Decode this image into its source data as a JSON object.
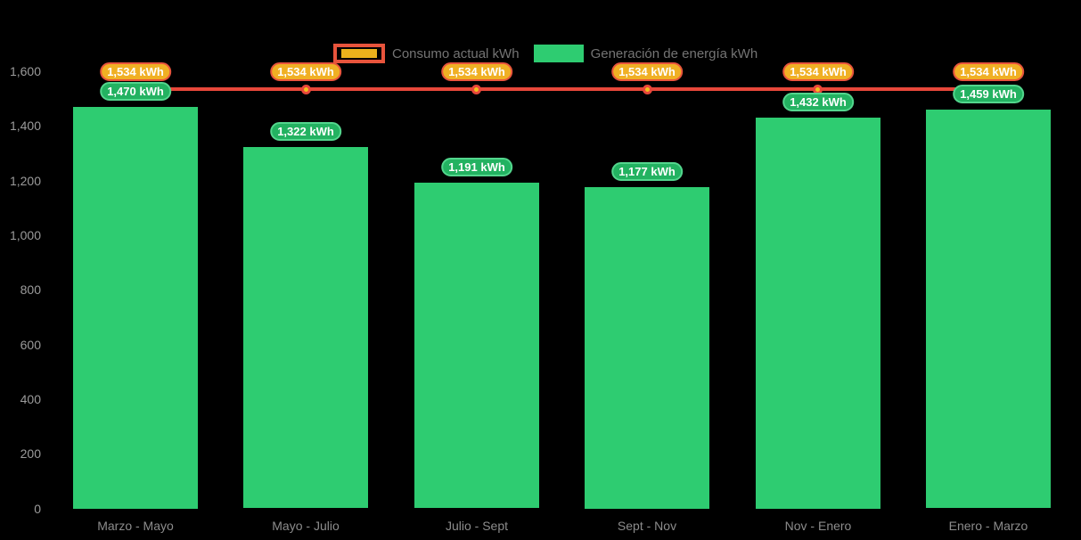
{
  "chart_data": {
    "type": "bar",
    "title": "",
    "background": "#000000",
    "grid": false,
    "legend_position": "top",
    "ylim": [
      0,
      1600
    ],
    "categories": [
      "Marzo - Mayo",
      "Mayo - Julio",
      "Julio - Sept",
      "Sept - Nov",
      "Nov - Enero",
      "Enero - Marzo"
    ],
    "series": [
      {
        "name": "Consumo actual kWh",
        "type": "line",
        "color": "#e8473a",
        "marker_fill": "#f3c01f",
        "label_fill": "#f0b024",
        "label_border": "#e8543c",
        "values": [
          1534,
          1534,
          1534,
          1534,
          1534,
          1534
        ],
        "labels": [
          "1,534 kWh",
          "1,534 kWh",
          "1,534 kWh",
          "1,534 kWh",
          "1,534 kWh",
          "1,534 kWh"
        ]
      },
      {
        "name": "Generación de energía kWh",
        "type": "bar",
        "color": "#2ecc71",
        "label_fill": "#23b261",
        "label_border": "#53d68d",
        "values": [
          1470,
          1322,
          1191,
          1177,
          1432,
          1459
        ],
        "labels": [
          "1,470 kWh",
          "1,322 kWh",
          "1,191 kWh",
          "1,177 kWh",
          "1,432 kWh",
          "1,459 kWh"
        ]
      }
    ],
    "y_axis": {
      "color": "#9b9b9b",
      "ticks": [
        {
          "value": 1600,
          "label": "1,600"
        },
        {
          "value": 1400,
          "label": "1,400"
        },
        {
          "value": 1200,
          "label": "1,200"
        },
        {
          "value": 1000,
          "label": "1,000"
        },
        {
          "value": 800,
          "label": "800"
        },
        {
          "value": 600,
          "label": "600"
        },
        {
          "value": 400,
          "label": "400"
        },
        {
          "value": 200,
          "label": "200"
        },
        {
          "value": 0,
          "label": "0"
        }
      ]
    },
    "x_axis": {
      "color": "#8c8c8c"
    }
  }
}
